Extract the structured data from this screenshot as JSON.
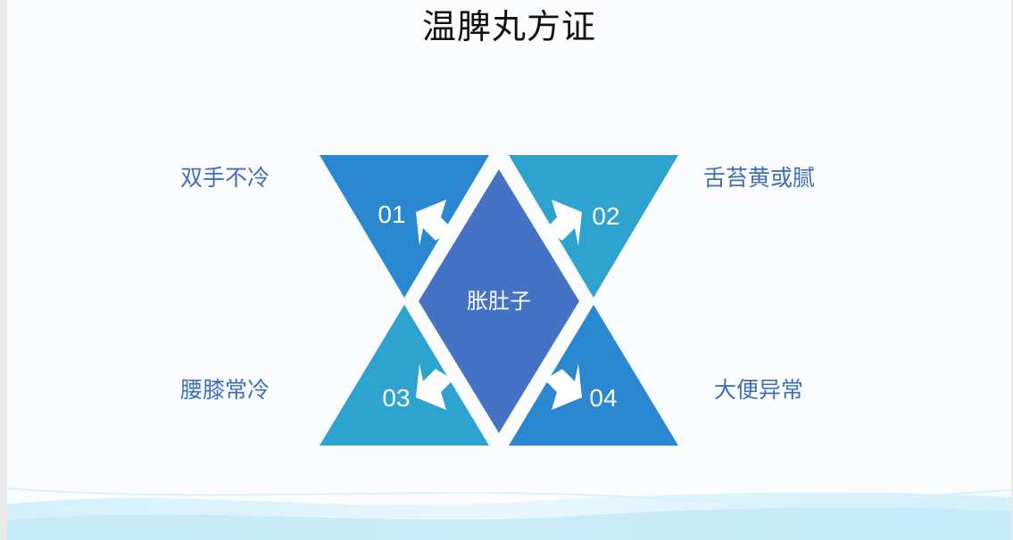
{
  "title": "温脾丸方证",
  "center": {
    "label": "胀肚子",
    "color": "#4472c4"
  },
  "items": [
    {
      "num": "01",
      "text": "双手不冷",
      "color": "#2a88d0"
    },
    {
      "num": "02",
      "text": "舌苔黄或腻",
      "color": "#2ea3cf"
    },
    {
      "num": "03",
      "text": "腰膝常冷",
      "color": "#2ea3cf"
    },
    {
      "num": "04",
      "text": "大便异常",
      "color": "#2a88d0"
    }
  ],
  "colors": {
    "label_text": "#3d6fb8",
    "arrow": "#ffffff"
  }
}
